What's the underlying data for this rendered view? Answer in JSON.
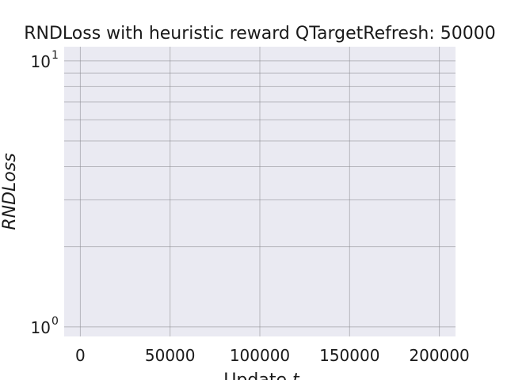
{
  "chart_data": {
    "type": "line",
    "title": "RNDLoss with heuristic reward QTargetRefresh: 50000",
    "xlabel": "Update",
    "xlabel_var": "t",
    "ylabel": "RNDLoss",
    "xscale": "linear",
    "yscale": "log",
    "xlim": [
      -9000,
      209000
    ],
    "ylim": [
      0.92,
      11.3
    ],
    "xticks": [
      0,
      50000,
      100000,
      150000,
      200000
    ],
    "xtick_labels": [
      "0",
      "50000",
      "100000",
      "150000",
      "200000"
    ],
    "yticks_major": [
      1,
      10
    ],
    "ytick_labels": [
      {
        "base": "10",
        "exp": "0"
      },
      {
        "base": "10",
        "exp": "1"
      }
    ],
    "yticks_minor": [
      2,
      3,
      4,
      5,
      6,
      7,
      8,
      9
    ],
    "grid": true,
    "series": [],
    "colors": {
      "plot_background": "#eaeaf2",
      "grid": "#8a8a90",
      "text": "#1a1a1a"
    }
  }
}
